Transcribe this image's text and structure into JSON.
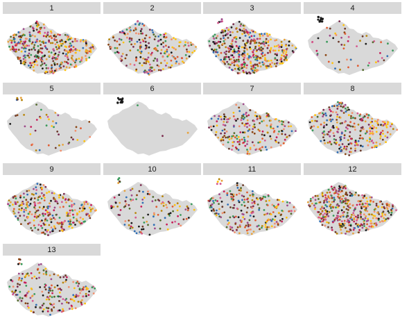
{
  "facets": [
    {
      "label": "1",
      "density": 380,
      "east": 0.55
    },
    {
      "label": "2",
      "density": 230,
      "east": 0.45
    },
    {
      "label": "3",
      "density": 420,
      "east": 0.55
    },
    {
      "label": "4",
      "density": 55,
      "east": 0.05
    },
    {
      "label": "5",
      "density": 45,
      "east": 0.1
    },
    {
      "label": "6",
      "density": 3,
      "east": 0.0
    },
    {
      "label": "7",
      "density": 220,
      "east": 0.25
    },
    {
      "label": "8",
      "density": 280,
      "east": 0.5
    },
    {
      "label": "9",
      "density": 300,
      "east": 0.35
    },
    {
      "label": "10",
      "density": 120,
      "east": 0.1
    },
    {
      "label": "11",
      "density": 230,
      "east": 0.3
    },
    {
      "label": "12",
      "density": 420,
      "east": 0.45
    },
    {
      "label": "13",
      "density": 200,
      "east": 0.2
    }
  ],
  "colors": {
    "map_fill": "#d9d9d9",
    "strip_fill": "#d9d9d9",
    "palette": [
      "#1a1a1a",
      "#7b2c4e",
      "#b8860b",
      "#e8a33d",
      "#ffc20e",
      "#f28e6b",
      "#d65a8f",
      "#9e4a8a",
      "#2f6eb5",
      "#3a9a5b",
      "#8b4513",
      "#e05d33",
      "#6b3a2a",
      "#c71f5a",
      "#556b2f"
    ]
  }
}
